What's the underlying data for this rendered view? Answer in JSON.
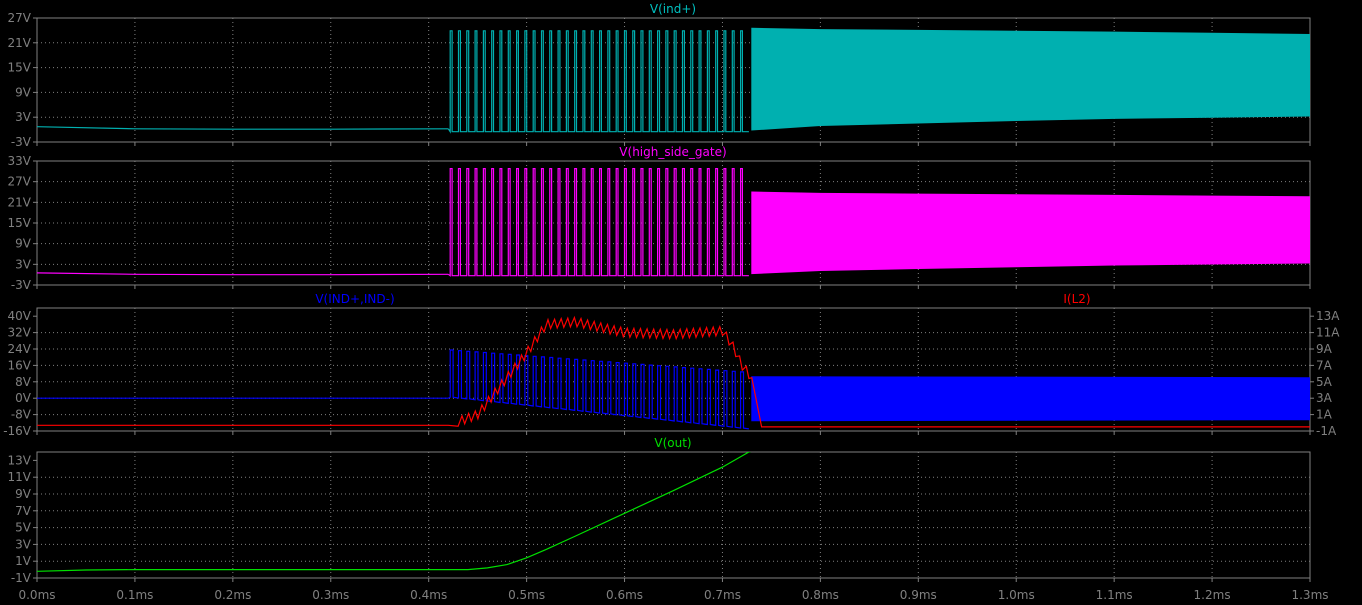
{
  "colors": {
    "background": "#000000",
    "frame": "#808080",
    "grid": "#808080",
    "axis_text": "#808080",
    "ind_plus": "#00b0b0",
    "ind_plus_title": "#00c0c0",
    "high_side_gate": "#ff00ff",
    "ind_diff": "#0000ff",
    "i_l2": "#ff0000",
    "v_out": "#00e000"
  },
  "x_axis": {
    "range": [
      0,
      1.3
    ],
    "ticks": [
      0,
      0.1,
      0.2,
      0.3,
      0.4,
      0.5,
      0.6,
      0.7,
      0.8,
      0.9,
      1.0,
      1.1,
      1.2,
      1.3
    ],
    "tick_labels": [
      "0.0ms",
      "0.1ms",
      "0.2ms",
      "0.3ms",
      "0.4ms",
      "0.5ms",
      "0.6ms",
      "0.7ms",
      "0.8ms",
      "0.9ms",
      "1.0ms",
      "1.1ms",
      "1.2ms",
      "1.3ms"
    ]
  },
  "chart_data": [
    {
      "type": "line",
      "title": "V(ind+)",
      "ylim": [
        -3,
        27
      ],
      "yticks": [
        -3,
        3,
        9,
        15,
        21,
        27
      ],
      "ytick_labels": [
        "-3V",
        "3V",
        "9V",
        "15V",
        "21V",
        "27V"
      ],
      "grid": true,
      "series": [
        {
          "name": "V(ind+)",
          "x": [
            0,
            0.1,
            0.2,
            0.3,
            0.42
          ],
          "y": [
            0.7,
            0.2,
            0.1,
            0.1,
            0.2
          ],
          "switching_start": 0.422,
          "switching_end": 0.727,
          "switch_high": 23.9,
          "switch_low": -0.5,
          "band": {
            "x": [
              0.73,
              0.8,
              0.9,
              1.0,
              1.1,
              1.2,
              1.3
            ],
            "upper": [
              24.5,
              24.2,
              24.0,
              23.8,
              23.6,
              23.3,
              23.0
            ],
            "lower": [
              -0.1,
              1.0,
              1.6,
              2.2,
              2.7,
              3.0,
              3.3
            ]
          }
        }
      ]
    },
    {
      "type": "line",
      "title": "V(high_side_gate)",
      "ylim": [
        -3,
        33
      ],
      "yticks": [
        -3,
        3,
        9,
        15,
        21,
        27,
        33
      ],
      "ytick_labels": [
        "-3V",
        "3V",
        "9V",
        "15V",
        "21V",
        "27V",
        "33V"
      ],
      "grid": true,
      "series": [
        {
          "name": "V(high_side_gate)",
          "x": [
            0,
            0.1,
            0.2,
            0.3,
            0.42
          ],
          "y": [
            0.5,
            0.1,
            0.0,
            0.0,
            0.1
          ],
          "switching_start": 0.422,
          "switching_end": 0.727,
          "switch_high": 30.8,
          "switch_low": -0.3,
          "band": {
            "x": [
              0.73,
              0.8,
              0.9,
              1.0,
              1.1,
              1.2,
              1.3
            ],
            "upper": [
              24.0,
              23.6,
              23.4,
              23.2,
              23.0,
              22.8,
              22.6
            ],
            "lower": [
              0.3,
              1.2,
              1.8,
              2.3,
              2.8,
              3.1,
              3.4
            ]
          }
        }
      ]
    },
    {
      "type": "line",
      "title_left": "V(IND+,IND-)",
      "title_right": "I(L2)",
      "ylim": [
        -16,
        44
      ],
      "yticks": [
        -16,
        -8,
        0,
        8,
        16,
        24,
        32,
        40
      ],
      "ytick_labels": [
        "-16V",
        "-8V",
        "0V",
        "8V",
        "16V",
        "24V",
        "32V",
        "40V"
      ],
      "y2lim": [
        -1,
        14
      ],
      "y2ticks": [
        -1,
        1,
        3,
        5,
        7,
        9,
        11,
        13
      ],
      "y2tick_labels": [
        "-1A",
        "1A",
        "3A",
        "5A",
        "7A",
        "9A",
        "11A",
        "13A"
      ],
      "grid": true,
      "series": [
        {
          "name": "V(IND+,IND-)",
          "x": [
            0,
            0.42
          ],
          "y": [
            0,
            0
          ],
          "switching_start": 0.422,
          "switching_end": 0.727,
          "switch_high": 23.5,
          "switch_high_end": 12.5,
          "switch_low": 0.5,
          "switch_low_end": -15,
          "band": {
            "x": [
              0.73,
              1.3
            ],
            "upper": [
              10.5,
              10.0
            ],
            "lower": [
              -11,
              -10.5
            ]
          }
        },
        {
          "name": "I(L2)",
          "x": [
            0,
            0.42,
            0.45,
            0.5,
            0.52,
            0.55,
            0.6,
            0.65,
            0.7,
            0.71,
            0.72,
            0.73,
            0.74,
            1.3
          ],
          "y": [
            -0.3,
            -0.3,
            1.0,
            8.5,
            12.0,
            12.3,
            11.0,
            10.8,
            11.2,
            9.5,
            7.0,
            5.5,
            -0.5,
            -0.5
          ],
          "ripple_amplitude": 1.1
        }
      ]
    },
    {
      "type": "line",
      "title": "V(out)",
      "ylim": [
        -1,
        14
      ],
      "yticks": [
        -1,
        1,
        3,
        5,
        7,
        9,
        11,
        13
      ],
      "ytick_labels": [
        "-1V",
        "1V",
        "3V",
        "5V",
        "7V",
        "9V",
        "11V",
        "13V"
      ],
      "grid": true,
      "series": [
        {
          "name": "V(out)",
          "x": [
            0,
            0.05,
            0.1,
            0.2,
            0.3,
            0.44,
            0.46,
            0.48,
            0.5,
            0.52,
            0.55,
            0.6,
            0.65,
            0.7,
            0.727,
            0.73,
            1.3
          ],
          "y": [
            -0.2,
            -0.05,
            0.0,
            0.0,
            0.0,
            0.0,
            0.2,
            0.6,
            1.4,
            2.4,
            4.0,
            6.7,
            9.4,
            12.2,
            14.0,
            14.1,
            14.1
          ]
        }
      ]
    }
  ]
}
